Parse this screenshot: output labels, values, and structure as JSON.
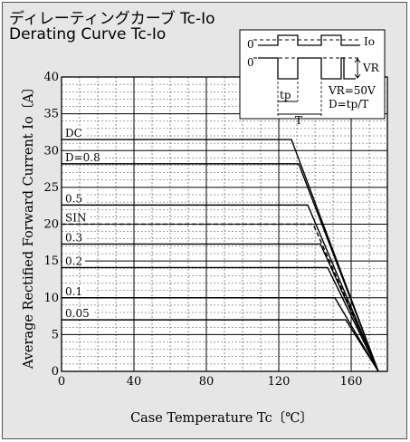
{
  "chart_data": {
    "type": "line",
    "title": "ディレーティングカーブ Tc-Io",
    "subtitle": "Derating Curve Tc-Io",
    "xlabel": "Case Temperature Tc〔℃〕",
    "ylabel": "Average Rectified Forward Current Io〔A〕",
    "xlim": [
      0,
      180
    ],
    "ylim": [
      0,
      40
    ],
    "xticks": [
      "0",
      "40",
      "80",
      "120",
      "160"
    ],
    "yticks": [
      "0",
      "5",
      "10",
      "15",
      "20",
      "25",
      "30",
      "35",
      "40"
    ],
    "grid": true,
    "series": [
      {
        "name": "DC",
        "style": "solid",
        "x": [
          0,
          127,
          175
        ],
        "y": [
          31.5,
          31.5,
          0
        ]
      },
      {
        "name": "D=0.8",
        "style": "solid",
        "x": [
          0,
          131,
          175
        ],
        "y": [
          28.2,
          28.2,
          0
        ]
      },
      {
        "name": "0.5",
        "style": "solid",
        "x": [
          0,
          136,
          175
        ],
        "y": [
          22.6,
          22.6,
          0
        ]
      },
      {
        "name": "SIN",
        "style": "dashed",
        "x": [
          0,
          139,
          175
        ],
        "y": [
          20.0,
          20.0,
          0
        ]
      },
      {
        "name": "0.3",
        "style": "solid",
        "x": [
          0,
          143,
          175
        ],
        "y": [
          17.3,
          17.3,
          0
        ]
      },
      {
        "name": "0.2",
        "style": "solid",
        "x": [
          0,
          147,
          175
        ],
        "y": [
          14.1,
          14.1,
          0
        ]
      },
      {
        "name": "0.1",
        "style": "solid",
        "x": [
          0,
          151,
          175
        ],
        "y": [
          10.0,
          10.0,
          0
        ]
      },
      {
        "name": "0.05",
        "style": "solid",
        "x": [
          0,
          157,
          175
        ],
        "y": [
          7.0,
          7.0,
          0
        ]
      }
    ],
    "inset": {
      "io_label": "Io",
      "vr_label": "VR",
      "zero_label": "0",
      "tp_label": "tp",
      "t_label": "T",
      "vr_value": "VR=50V",
      "duty": "D=tp/T"
    }
  }
}
